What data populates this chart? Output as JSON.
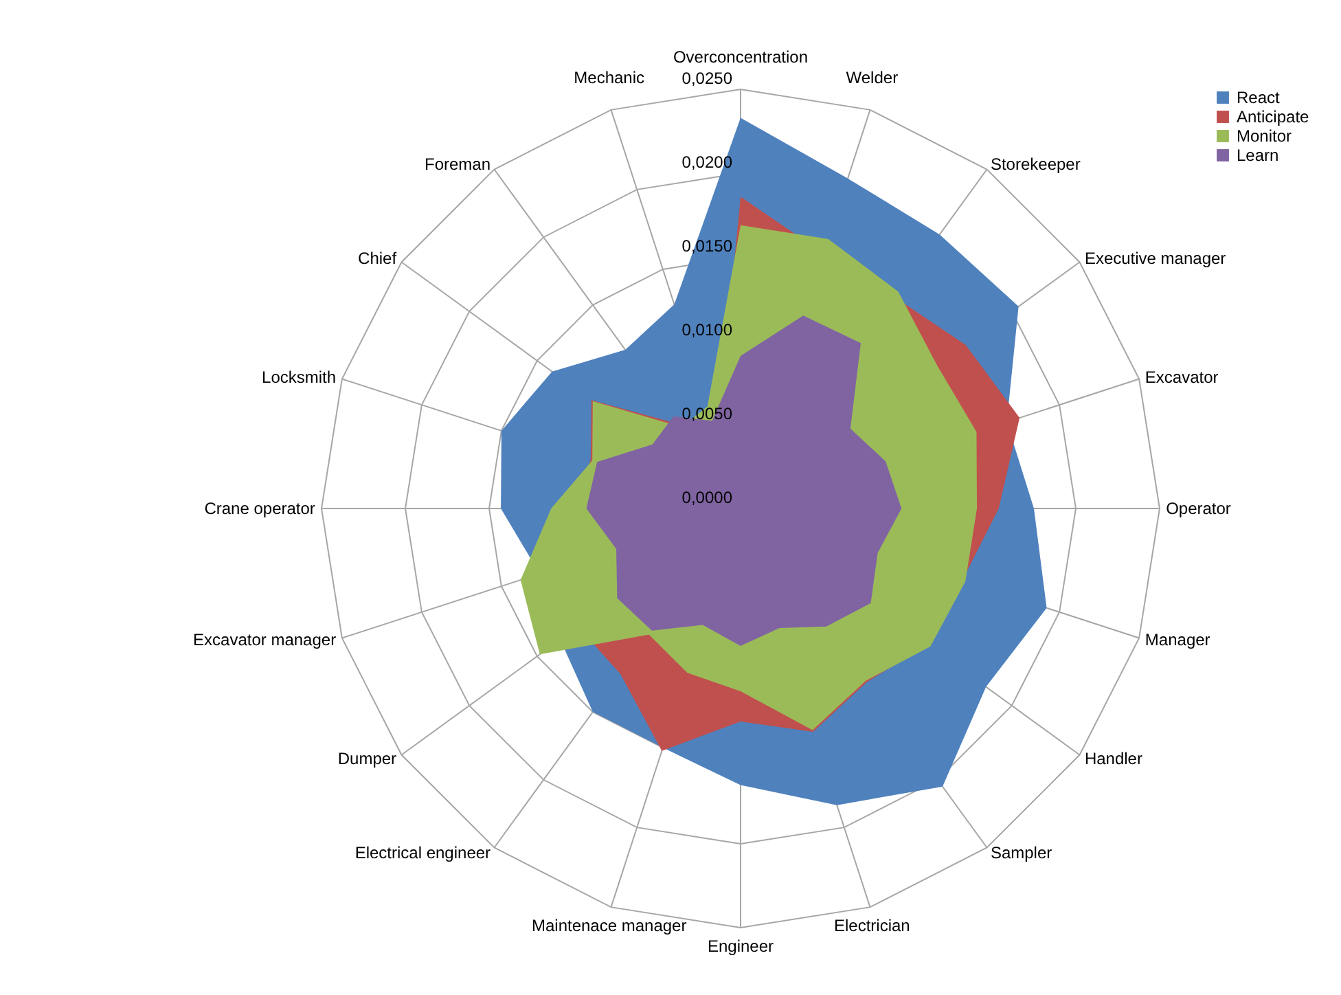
{
  "chart_data": {
    "type": "radar",
    "categories": [
      "Overconcentration",
      "Welder",
      "Storekeeper",
      "Executive manager",
      "Excavator",
      "Operator",
      "Manager",
      "Handler",
      "Sampler",
      "Electrician",
      "Engineer",
      "Maintenace manager",
      "Electrical engineer",
      "Dumper",
      "Excavator manager",
      "Crane operator",
      "Locksmith",
      "Chief",
      "Foreman",
      "Mechanic"
    ],
    "series": [
      {
        "name": "React",
        "color": "#4f81bd",
        "values": [
          0.0233,
          0.0207,
          0.0202,
          0.0205,
          0.0167,
          0.0175,
          0.0192,
          0.0181,
          0.0205,
          0.0186,
          0.0165,
          0.015,
          0.015,
          0.0133,
          0.0126,
          0.0143,
          0.015,
          0.0139,
          0.0117,
          0.0128
        ]
      },
      {
        "name": "Anticipate",
        "color": "#c0504d",
        "values": [
          0.0186,
          0.016,
          0.0156,
          0.0166,
          0.0175,
          0.0154,
          0.0139,
          0.0138,
          0.0128,
          0.014,
          0.0127,
          0.0152,
          0.0122,
          0.012,
          0.0115,
          0.01,
          0.0094,
          0.011,
          0.0062,
          0.0045
        ]
      },
      {
        "name": "Monitor",
        "color": "#9bbb59",
        "values": [
          0.0169,
          0.0169,
          0.016,
          0.0145,
          0.0148,
          0.0141,
          0.0141,
          0.014,
          0.0127,
          0.0139,
          0.0109,
          0.0103,
          0.0093,
          0.0148,
          0.0138,
          0.0113,
          0.0093,
          0.0109,
          0.006,
          0.0064
        ]
      },
      {
        "name": "Learn",
        "color": "#8064a2",
        "values": [
          0.0091,
          0.0121,
          0.0122,
          0.0081,
          0.0091,
          0.0096,
          0.0086,
          0.0096,
          0.0087,
          0.0075,
          0.0082,
          0.0073,
          0.009,
          0.0091,
          0.0078,
          0.0092,
          0.009,
          0.0065,
          0.0068,
          0.0055
        ]
      }
    ],
    "ylim": [
      0,
      0.025
    ],
    "yticks": [
      {
        "value": 0,
        "label": "0,0000"
      },
      {
        "value": 0.005,
        "label": "0,0050"
      },
      {
        "value": 0.01,
        "label": "0,0100"
      },
      {
        "value": 0.015,
        "label": "0,0150"
      },
      {
        "value": 0.02,
        "label": "0,0200"
      },
      {
        "value": 0.025,
        "label": "0,0250"
      }
    ],
    "grid": true,
    "legend": "top right"
  }
}
